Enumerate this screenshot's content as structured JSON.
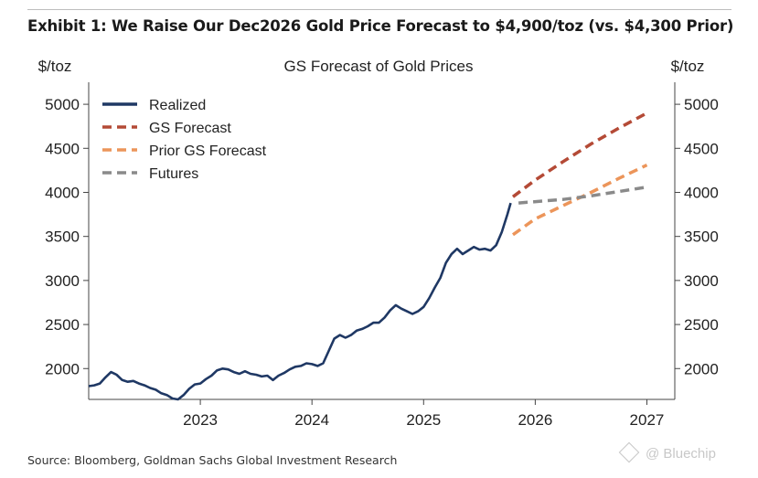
{
  "exhibit_title": "Exhibit 1: We Raise Our Dec2026 Gold Price Forecast to $4,900/toz (vs. $4,300 Prior)",
  "source": "Source: Bloomberg, Goldman Sachs Global Investment Research",
  "watermark": "@ Bluechip",
  "watermark_icon": "diamond-logo-icon",
  "chart_data": {
    "type": "line",
    "title": "GS Forecast of Gold Prices",
    "ylabel_left": "$/toz",
    "ylabel_right": "$/toz",
    "xlabel": "",
    "ylim": [
      1650,
      5250
    ],
    "xlim": [
      2022.0,
      2027.25
    ],
    "yticks": [
      2000,
      2500,
      3000,
      3500,
      4000,
      4500,
      5000
    ],
    "yticklabels": [
      "2000",
      "2500",
      "3000",
      "3500",
      "4000",
      "4500",
      "5000"
    ],
    "xticks": [
      2023,
      2024,
      2025,
      2026,
      2027
    ],
    "xticklabels": [
      "2023",
      "2024",
      "2025",
      "2026",
      "2027"
    ],
    "grid": false,
    "legend_position": "top-left",
    "series": [
      {
        "name": "Realized",
        "color": "#1f3864",
        "style": "solid",
        "x": [
          2022.0,
          2022.05,
          2022.1,
          2022.15,
          2022.2,
          2022.25,
          2022.3,
          2022.35,
          2022.4,
          2022.45,
          2022.5,
          2022.55,
          2022.6,
          2022.65,
          2022.7,
          2022.75,
          2022.8,
          2022.85,
          2022.9,
          2022.95,
          2023.0,
          2023.05,
          2023.1,
          2023.15,
          2023.2,
          2023.25,
          2023.3,
          2023.35,
          2023.4,
          2023.45,
          2023.5,
          2023.55,
          2023.6,
          2023.65,
          2023.7,
          2023.75,
          2023.8,
          2023.85,
          2023.9,
          2023.95,
          2024.0,
          2024.05,
          2024.1,
          2024.15,
          2024.2,
          2024.25,
          2024.3,
          2024.35,
          2024.4,
          2024.45,
          2024.5,
          2024.55,
          2024.6,
          2024.65,
          2024.7,
          2024.75,
          2024.8,
          2024.85,
          2024.9,
          2024.95,
          2025.0,
          2025.05,
          2025.1,
          2025.15,
          2025.2,
          2025.25,
          2025.3,
          2025.35,
          2025.4,
          2025.45,
          2025.5,
          2025.55,
          2025.6,
          2025.65,
          2025.7,
          2025.75,
          2025.78
        ],
        "values": [
          1800,
          1810,
          1830,
          1900,
          1960,
          1930,
          1870,
          1850,
          1860,
          1830,
          1810,
          1780,
          1760,
          1720,
          1700,
          1660,
          1650,
          1700,
          1770,
          1820,
          1830,
          1880,
          1920,
          1980,
          2000,
          1990,
          1960,
          1940,
          1970,
          1940,
          1930,
          1910,
          1920,
          1870,
          1920,
          1950,
          1990,
          2020,
          2030,
          2060,
          2050,
          2030,
          2060,
          2200,
          2340,
          2380,
          2350,
          2380,
          2430,
          2450,
          2480,
          2520,
          2520,
          2580,
          2660,
          2720,
          2680,
          2650,
          2620,
          2650,
          2700,
          2800,
          2920,
          3030,
          3200,
          3300,
          3360,
          3300,
          3340,
          3380,
          3350,
          3360,
          3340,
          3400,
          3550,
          3750,
          3880
        ]
      },
      {
        "name": "GS Forecast",
        "color": "#b44a36",
        "style": "dashed",
        "x": [
          2025.8,
          2026.0,
          2026.25,
          2026.5,
          2026.75,
          2027.0
        ],
        "values": [
          3950,
          4140,
          4350,
          4550,
          4730,
          4900
        ]
      },
      {
        "name": "Prior GS Forecast",
        "color": "#ec955a",
        "style": "dashed",
        "x": [
          2025.8,
          2026.0,
          2026.25,
          2026.5,
          2026.75,
          2027.0
        ],
        "values": [
          3520,
          3700,
          3850,
          4000,
          4160,
          4310
        ]
      },
      {
        "name": "Futures",
        "color": "#8a8a8a",
        "style": "dashed",
        "x": [
          2025.85,
          2026.25,
          2026.5,
          2026.75,
          2027.0
        ],
        "values": [
          3880,
          3920,
          3960,
          4010,
          4060
        ]
      }
    ]
  }
}
